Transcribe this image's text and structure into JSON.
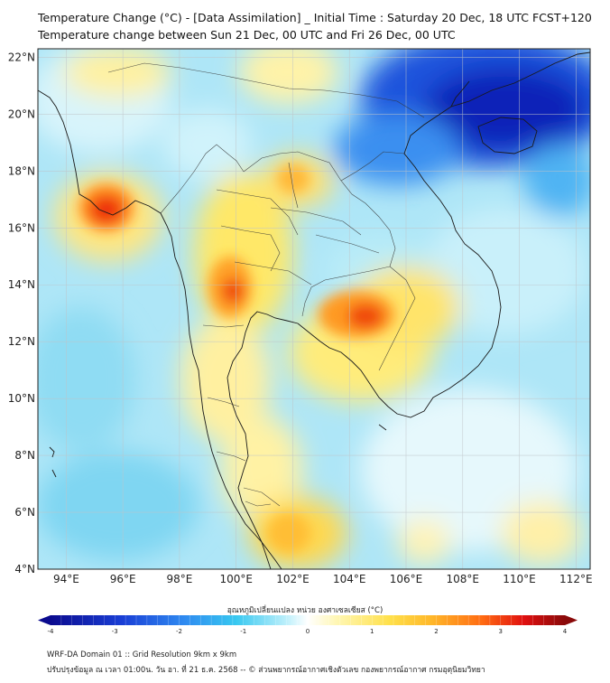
{
  "title": {
    "line1": "Temperature Change (°C) - [Data Assimilation] _ Initial Time : Saturday 20 Dec, 18 UTC FCST+120",
    "line2": "Temperature change between Sun 21 Dec, 00 UTC and Fri 26 Dec, 00 UTC"
  },
  "axes": {
    "lat_labels": [
      "22°N",
      "20°N",
      "18°N",
      "16°N",
      "14°N",
      "12°N",
      "10°N",
      "8°N",
      "6°N",
      "4°N"
    ],
    "lon_labels": [
      "94°E",
      "96°E",
      "98°E",
      "100°E",
      "102°E",
      "104°E",
      "106°E",
      "108°E",
      "110°E",
      "112°E"
    ],
    "lat_range": [
      4,
      22.3
    ],
    "lon_range": [
      93,
      112.5
    ]
  },
  "colorbar": {
    "title": "อุณหภูมิเปลี่ยนแปลง หน่วย องศาเซลเซียส (°C)",
    "tick_labels": [
      "-4",
      "-3",
      "-2",
      "-1",
      "0",
      "1",
      "2",
      "3",
      "4"
    ],
    "range": [
      -4,
      4
    ],
    "colors": [
      "#0b0b8f",
      "#1a3fd6",
      "#2f8af0",
      "#38c8f0",
      "#bff0fb",
      "#ffffff",
      "#fff6b0",
      "#ffe04a",
      "#ffb82a",
      "#ff6a12",
      "#e01010",
      "#8a0a0a"
    ]
  },
  "footer": {
    "line1": "WRF-DA Domain 01 :: Grid Resolution 9km x 9km",
    "line2": "ปรับปรุงข้อมูล ณ เวลา 01:00น. วัน อา. ที่ 21 ธ.ค. 2568 -- © ส่วนพยากรณ์อากาศเชิงตัวเลข กองพยากรณ์อากาศ กรมอุตุนิยมวิทยา"
  },
  "icons": {
    "colorbar_left_arrow": "left-triangle-icon",
    "colorbar_right_arrow": "right-triangle-icon"
  }
}
